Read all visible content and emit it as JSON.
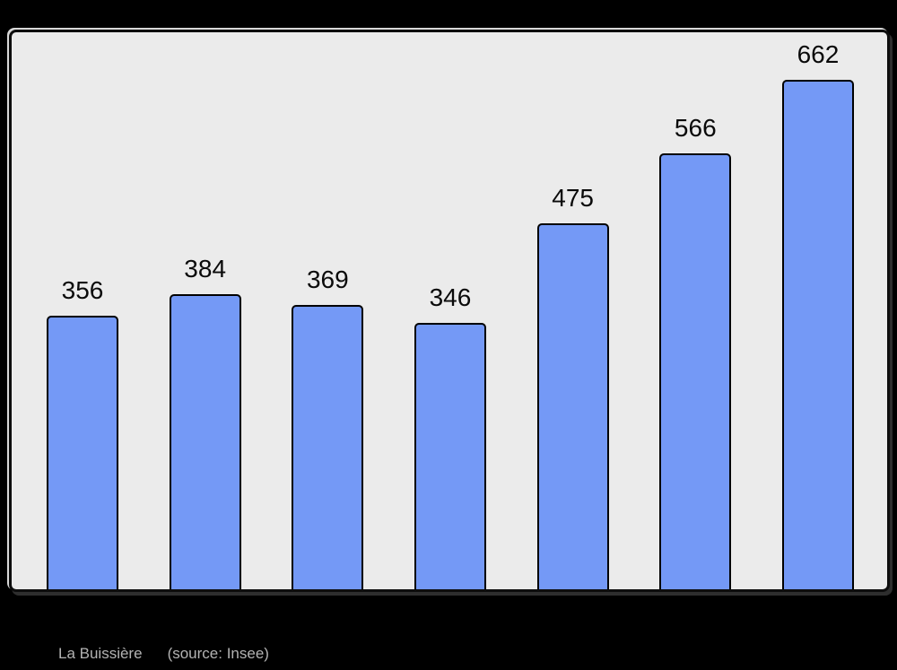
{
  "page": {
    "background_color": "#000000"
  },
  "caption": {
    "title": "La Buissière",
    "source": "(source: Insee)",
    "text_color": "#b3b3b3"
  },
  "chart_data": {
    "type": "bar",
    "values": [
      356,
      384,
      369,
      346,
      475,
      566,
      662
    ],
    "value_labels": [
      "356",
      "384",
      "369",
      "346",
      "475",
      "566",
      "662"
    ],
    "title": "",
    "xlabel": "",
    "ylabel": "",
    "x_tick_labels_shown": false,
    "y_axis_shown": false,
    "grid": false,
    "legend_position": "none",
    "ylim": [
      0,
      730
    ],
    "bar_fill_color": "#7499f6",
    "bar_border_color": "#000000",
    "plot_background_color": "#ebebeb",
    "outer_background_color": "#000000",
    "value_label_color": "#0a0a0a"
  }
}
